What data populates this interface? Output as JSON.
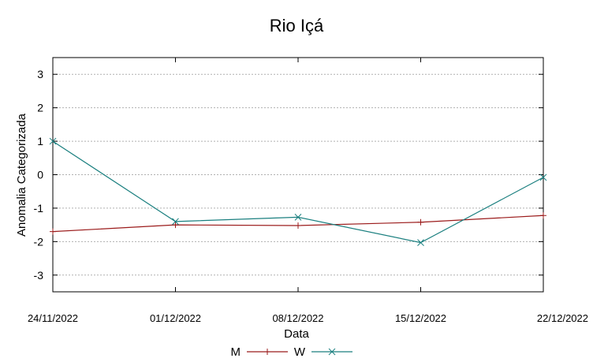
{
  "chart_data": {
    "type": "line",
    "title": "Rio Içá",
    "xlabel": "Data",
    "ylabel": "Anomalia Categorizada",
    "categories": [
      "24/11/2022",
      "01/12/2022",
      "08/12/2022",
      "15/12/2022",
      "22/12/2022"
    ],
    "yticks": [
      "3",
      "2",
      "1",
      "0",
      "-1",
      "-2",
      "-3"
    ],
    "ylim": [
      -3.5,
      3.5
    ],
    "grid": true,
    "legend_position": "bottom",
    "series": [
      {
        "name": "M",
        "color": "#9b1b1b",
        "marker": "plus",
        "values": [
          -1.7,
          -1.5,
          -1.52,
          -1.42,
          -1.22
        ]
      },
      {
        "name": "W",
        "color": "#1a7f7f",
        "marker": "x",
        "values": [
          1.0,
          -1.4,
          -1.27,
          -2.03,
          -0.08
        ]
      }
    ]
  }
}
